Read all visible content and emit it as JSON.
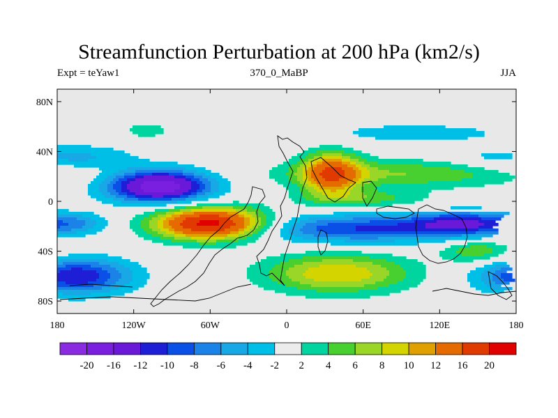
{
  "title": "Streamfunction Perturbation at 200 hPa (km2/s)",
  "subtitle_left": "Expt = teYaw1",
  "subtitle_center": "370_0_MaBP",
  "subtitle_right": "JJA",
  "map": {
    "type": "contour-map",
    "projection": "cylindrical-equidistant",
    "lon_range": [
      -180,
      180
    ],
    "lat_range": [
      -90,
      90
    ],
    "lon_ticks": [
      {
        "value": -180,
        "label": "180"
      },
      {
        "value": -120,
        "label": "120W"
      },
      {
        "value": -60,
        "label": "60W"
      },
      {
        "value": 0,
        "label": "0"
      },
      {
        "value": 60,
        "label": "60E"
      },
      {
        "value": 120,
        "label": "120E"
      },
      {
        "value": 180,
        "label": "180"
      }
    ],
    "lat_ticks": [
      {
        "value": 80,
        "label": "80N"
      },
      {
        "value": 40,
        "label": "40N"
      },
      {
        "value": 0,
        "label": "0"
      },
      {
        "value": -40,
        "label": "40S"
      },
      {
        "value": -80,
        "label": "80S"
      }
    ],
    "background_color": "#e8e8e8",
    "features": [
      {
        "name": "trough-north-pacific-atlantic",
        "lon": -100,
        "lat": 12,
        "amp": -19,
        "slon": 28,
        "slat": 9
      },
      {
        "name": "ridge-south-atlantic",
        "lon": -60,
        "lat": -18,
        "amp": 22,
        "slon": 30,
        "slat": 9
      },
      {
        "name": "ridge-west-asia",
        "lon": 35,
        "lat": 22,
        "amp": 14,
        "slon": 16,
        "slat": 12
      },
      {
        "name": "zonal-band-north",
        "lon": 90,
        "lat": 22,
        "amp": 6,
        "slon": 70,
        "slat": 8
      },
      {
        "name": "band-near-equator-east",
        "lon": 60,
        "lat": 2,
        "amp": 5,
        "slon": 35,
        "slat": 5
      },
      {
        "name": "trough-south-indian",
        "lon": 55,
        "lat": -22,
        "amp": -10,
        "slon": 55,
        "slat": 8
      },
      {
        "name": "trough-south-pacific",
        "lon": 140,
        "lat": -18,
        "amp": -11,
        "slon": 30,
        "slat": 7
      },
      {
        "name": "trough-southeast-pacific",
        "lon": -165,
        "lat": -60,
        "amp": -12,
        "slon": 30,
        "slat": 10
      },
      {
        "name": "ridge-southern-ocean",
        "lon": 40,
        "lat": -58,
        "amp": 10,
        "slon": 40,
        "slat": 11
      },
      {
        "name": "ridge-south-australia",
        "lon": 150,
        "lat": -40,
        "amp": 6,
        "slon": 20,
        "slat": 7
      },
      {
        "name": "ridge-far-north-atlantic",
        "lon": -110,
        "lat": 57,
        "amp": 4,
        "slon": 12,
        "slat": 4
      },
      {
        "name": "negative-north-atlantic",
        "lon": -170,
        "lat": 35,
        "amp": -5,
        "slon": 35,
        "slat": 7
      },
      {
        "name": "negative-high-latitude",
        "lon": 100,
        "lat": 55,
        "amp": -3,
        "slon": 60,
        "slat": 6
      },
      {
        "name": "negative-southeast-pacific",
        "lon": -165,
        "lat": -18,
        "amp": -5,
        "slon": 18,
        "slat": 6
      }
    ]
  },
  "colorbar": {
    "colors": [
      "#8a2be2",
      "#7a1fe0",
      "#6a19d8",
      "#1e1ed6",
      "#0a50e6",
      "#1b82e8",
      "#18a8e6",
      "#00bfe6",
      "#ececec",
      "#00d5a0",
      "#48d030",
      "#9ad628",
      "#d4d400",
      "#e0a000",
      "#e56a00",
      "#e03a00",
      "#e00000"
    ],
    "labels": [
      "-20",
      "-16",
      "-12",
      "-10",
      "-8",
      "-6",
      "-4",
      "-2",
      "2",
      "4",
      "6",
      "8",
      "10",
      "12",
      "16",
      "20"
    ],
    "levels": [
      -20,
      -16,
      -12,
      -10,
      -8,
      -6,
      -4,
      -2,
      2,
      4,
      6,
      8,
      10,
      12,
      16,
      20
    ]
  }
}
